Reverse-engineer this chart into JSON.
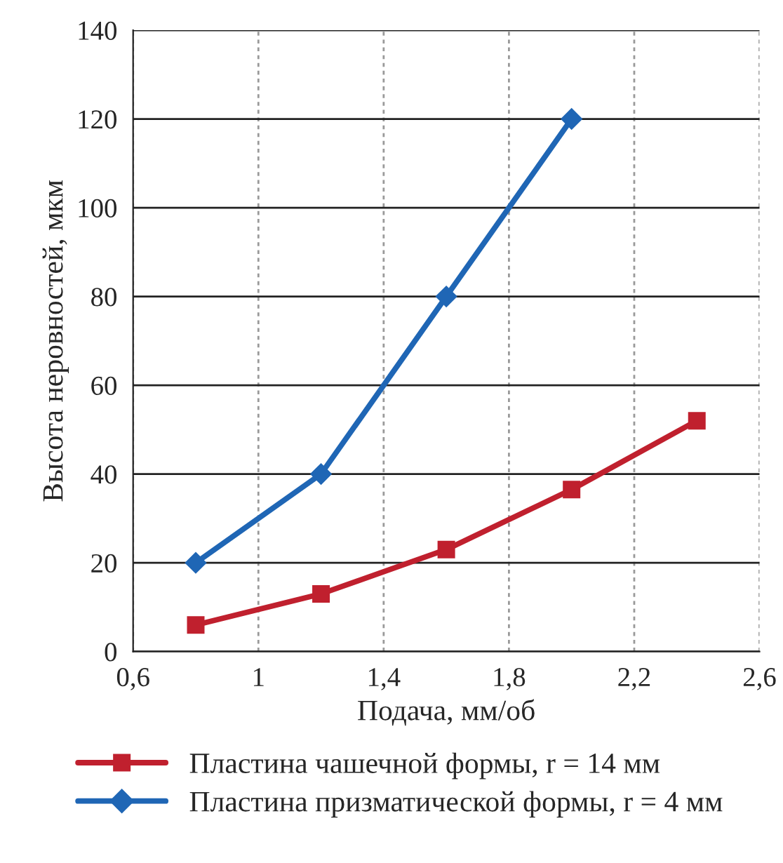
{
  "chart_data": {
    "type": "line",
    "xlabel": "Подача, мм/об",
    "ylabel": "Высота неровностей, мкм",
    "series": [
      {
        "name": "Пластина чашечной формы, r = 14 мм",
        "color": "#c0202e",
        "marker": "square",
        "x": [
          0.8,
          1.2,
          1.6,
          2.0,
          2.4
        ],
        "values": [
          6,
          13,
          23,
          36.5,
          52
        ]
      },
      {
        "name": "Пластина призматической формы, r = 4 мм",
        "color": "#1f66b5",
        "marker": "diamond",
        "x": [
          0.8,
          1.2,
          1.6,
          2.0
        ],
        "values": [
          20,
          40,
          80,
          120
        ]
      }
    ],
    "xlim": [
      0.6,
      2.6
    ],
    "xticks": [
      {
        "value": 0.6,
        "label": "0,6"
      },
      1,
      {
        "value": 1.4,
        "label": "1,4"
      },
      {
        "value": 1.8,
        "label": "1,8"
      },
      {
        "value": 2.2,
        "label": "2,2"
      },
      {
        "value": 2.6,
        "label": "2,6"
      }
    ],
    "ylim": [
      0,
      140
    ],
    "yticks": [
      0,
      20,
      40,
      60,
      80,
      100,
      120,
      140
    ],
    "grid": true,
    "legend": "bottom",
    "line_style": "solid"
  }
}
